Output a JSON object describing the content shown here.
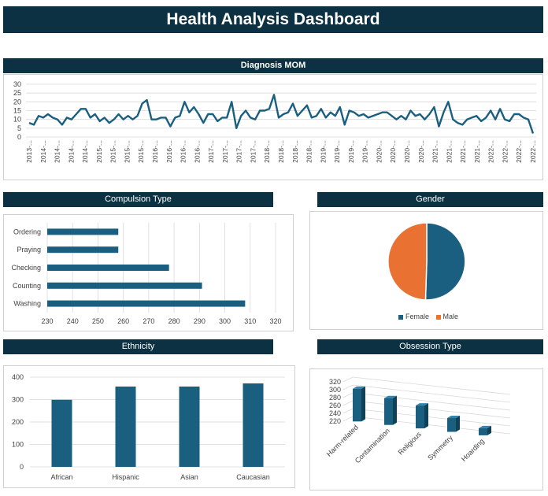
{
  "dashboard": {
    "title": "Health Analysis Dashboard"
  },
  "colors": {
    "banner": "#0b3142",
    "primary": "#1a5f80",
    "accent": "#e97132",
    "grid": "#d9d9d9"
  },
  "chart_data": [
    {
      "id": "diagnosis_mom",
      "type": "line",
      "title": "Diagnosis MOM",
      "ylim": [
        0,
        30
      ],
      "yticks": [
        0,
        5,
        10,
        15,
        20,
        25,
        30
      ],
      "x_labels": [
        "2013-...",
        "2014-...",
        "2014-...",
        "2014-...",
        "2014-...",
        "2015-...",
        "2015-...",
        "2015-...",
        "2015-...",
        "2016-...",
        "2016-...",
        "2016-...",
        "2016-...",
        "2017-...",
        "2017-...",
        "2017-...",
        "2017-...",
        "2018-...",
        "2018-...",
        "2018-...",
        "2018-...",
        "2019-...",
        "2019-...",
        "2019-...",
        "2019-...",
        "2020-...",
        "2020-...",
        "2020-...",
        "2020-...",
        "2021-...",
        "2021-...",
        "2021-...",
        "2021-...",
        "2022-...",
        "2022-...",
        "2022-...",
        "2022-..."
      ],
      "values": [
        8,
        7,
        12,
        11,
        13,
        11,
        10,
        7,
        11,
        10,
        13,
        16,
        16,
        11,
        13,
        9,
        11,
        8,
        10,
        13,
        10,
        12,
        10,
        12,
        19,
        21,
        10,
        10,
        11,
        11,
        6,
        11,
        12,
        20,
        14,
        17,
        13,
        8,
        13,
        13,
        9,
        11,
        11,
        20,
        5,
        12,
        15,
        11,
        10,
        15,
        15,
        16,
        24,
        11,
        13,
        14,
        19,
        12,
        15,
        18,
        11,
        12,
        16,
        11,
        14,
        12,
        17,
        7,
        15,
        14,
        12,
        13,
        11,
        12,
        13,
        14,
        14,
        12,
        10,
        12,
        10,
        15,
        12,
        13,
        10,
        13,
        17,
        6,
        14,
        20,
        10,
        8,
        7,
        10,
        11,
        12,
        9,
        11,
        15,
        10,
        16,
        10,
        9,
        13,
        13,
        11,
        10,
        2
      ]
    },
    {
      "id": "compulsion_type",
      "type": "bar",
      "orientation": "horizontal",
      "title": "Compulsion Type",
      "categories": [
        "Washing",
        "Counting",
        "Checking",
        "Praying",
        "Ordering"
      ],
      "values": [
        308,
        291,
        278,
        258,
        258
      ],
      "xlim": [
        230,
        320
      ],
      "xticks": [
        230,
        240,
        250,
        260,
        270,
        280,
        290,
        300,
        310,
        320
      ]
    },
    {
      "id": "gender",
      "type": "pie",
      "title": "Gender",
      "labels": [
        "Female",
        "Male"
      ],
      "values": [
        50.5,
        49.5
      ],
      "legend": "bottom"
    },
    {
      "id": "ethnicity",
      "type": "bar",
      "title": "Ethnicity",
      "categories": [
        "African",
        "Hispanic",
        "Asian",
        "Caucasian"
      ],
      "values": [
        299,
        358,
        358,
        372
      ],
      "ylim": [
        0,
        400
      ],
      "yticks": [
        0,
        100,
        200,
        300,
        400
      ]
    },
    {
      "id": "obsession_type",
      "type": "bar",
      "style": "3d-column",
      "title": "Obsession Type",
      "categories": [
        "Harm-related",
        "Contamination",
        "Religious",
        "Symmetry",
        "Hoarding"
      ],
      "values": [
        303,
        288,
        278,
        255,
        238
      ],
      "ylim": [
        220,
        320
      ],
      "yticks": [
        220,
        240,
        260,
        280,
        300,
        320
      ]
    }
  ]
}
